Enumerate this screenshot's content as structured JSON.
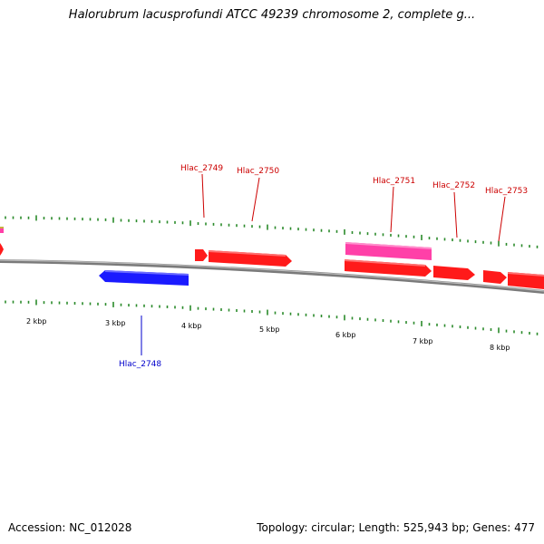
{
  "title": "Halorubrum lacusprofundi ATCC 49239 chromosome 2, complete g...",
  "footer": {
    "accession_label": "Accession:",
    "accession_value": "NC_012028",
    "topology_label": "Topology:",
    "topology_value": "circular",
    "length_label": "Length:",
    "length_value": "525,943 bp",
    "genes_label": "Genes:",
    "genes_value": "477"
  },
  "colors": {
    "backbone": "#8c8c8c",
    "tick": "#2a8a2a",
    "forward_gene": "#ff1a1a",
    "reverse_gene": "#1a1aff",
    "rna_gene": "#ff40a8",
    "forward_label": "#cc0000",
    "reverse_label": "#0000cc"
  },
  "scale_labels": [
    "2 kbp",
    "3 kbp",
    "4 kbp",
    "5 kbp",
    "6 kbp",
    "7 kbp",
    "8 kbp"
  ],
  "genes": [
    {
      "id": "edge-left",
      "label": "",
      "strand": "+",
      "kind": "cds"
    },
    {
      "id": "hlac2748",
      "label": "Hlac_2748",
      "strand": "-",
      "kind": "cds"
    },
    {
      "id": "hlac2749",
      "label": "Hlac_2749",
      "strand": "+",
      "kind": "cds"
    },
    {
      "id": "hlac2750",
      "label": "Hlac_2750",
      "strand": "+",
      "kind": "cds"
    },
    {
      "id": "hlac2751",
      "label": "Hlac_2751",
      "strand": "+",
      "kind": "rna"
    },
    {
      "id": "hlac2751b",
      "label": "",
      "strand": "+",
      "kind": "cds"
    },
    {
      "id": "hlac2752",
      "label": "Hlac_2752",
      "strand": "+",
      "kind": "cds"
    },
    {
      "id": "hlac2753",
      "label": "Hlac_2753",
      "strand": "+",
      "kind": "cds"
    },
    {
      "id": "hlac2754",
      "label": "",
      "strand": "+",
      "kind": "cds"
    }
  ]
}
